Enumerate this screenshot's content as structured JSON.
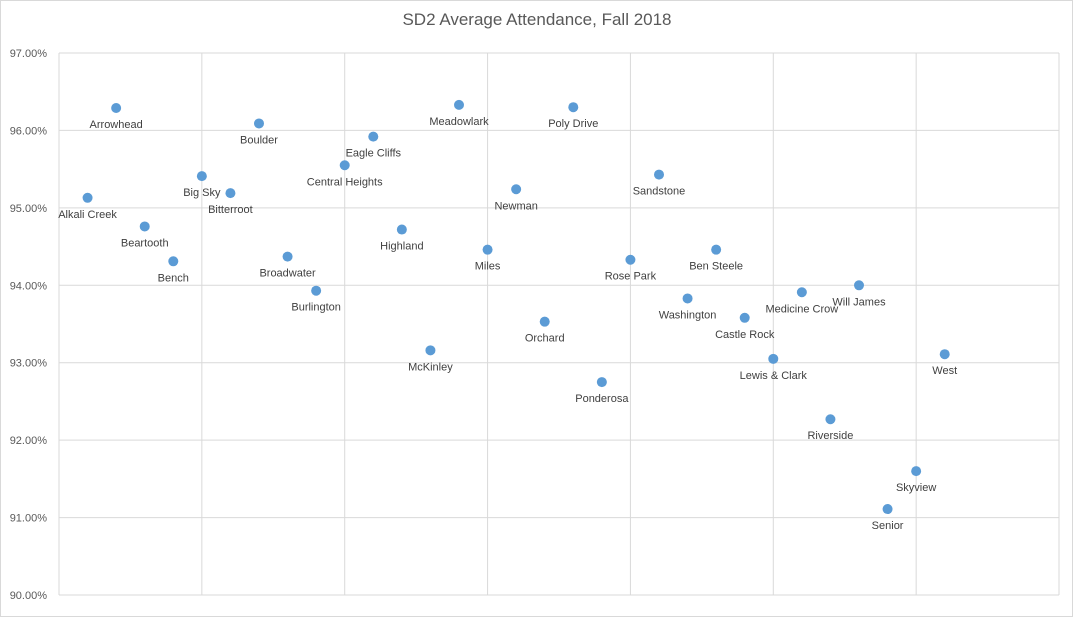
{
  "chart_data": {
    "type": "scatter",
    "title": "SD2 Average Attendance, Fall 2018",
    "xlabel": "",
    "ylabel": "",
    "ylim": [
      0.9,
      0.97
    ],
    "y_ticks": [
      "90.00%",
      "91.00%",
      "92.00%",
      "93.00%",
      "94.00%",
      "95.00%",
      "96.00%",
      "97.00%"
    ],
    "x_ticks_visible": false,
    "grid": true,
    "marker_color": "#5b9bd5",
    "points": [
      {
        "label": "Alkali Creek",
        "x": 1,
        "y": 0.9513
      },
      {
        "label": "Arrowhead",
        "x": 2,
        "y": 0.9629
      },
      {
        "label": "Beartooth",
        "x": 3,
        "y": 0.9476
      },
      {
        "label": "Bench",
        "x": 4,
        "y": 0.9431
      },
      {
        "label": "Big Sky",
        "x": 5,
        "y": 0.9541
      },
      {
        "label": "Bitterroot",
        "x": 6,
        "y": 0.9519
      },
      {
        "label": "Boulder",
        "x": 7,
        "y": 0.9609
      },
      {
        "label": "Broadwater",
        "x": 8,
        "y": 0.9437
      },
      {
        "label": "Burlington",
        "x": 9,
        "y": 0.9393
      },
      {
        "label": "Central Heights",
        "x": 10,
        "y": 0.9555
      },
      {
        "label": "Eagle Cliffs",
        "x": 11,
        "y": 0.9592
      },
      {
        "label": "Highland",
        "x": 12,
        "y": 0.9472
      },
      {
        "label": "McKinley",
        "x": 13,
        "y": 0.9316
      },
      {
        "label": "Meadowlark",
        "x": 14,
        "y": 0.9633
      },
      {
        "label": "Miles",
        "x": 15,
        "y": 0.9446
      },
      {
        "label": "Newman",
        "x": 16,
        "y": 0.9524
      },
      {
        "label": "Orchard",
        "x": 17,
        "y": 0.9353
      },
      {
        "label": "Poly Drive",
        "x": 18,
        "y": 0.963
      },
      {
        "label": "Ponderosa",
        "x": 19,
        "y": 0.9275
      },
      {
        "label": "Rose Park",
        "x": 20,
        "y": 0.9433
      },
      {
        "label": "Sandstone",
        "x": 21,
        "y": 0.9543
      },
      {
        "label": "Washington",
        "x": 22,
        "y": 0.9383
      },
      {
        "label": "Ben Steele",
        "x": 23,
        "y": 0.9446
      },
      {
        "label": "Castle Rock",
        "x": 24,
        "y": 0.9358
      },
      {
        "label": "Lewis & Clark",
        "x": 25,
        "y": 0.9305
      },
      {
        "label": "Medicine Crow",
        "x": 26,
        "y": 0.9391
      },
      {
        "label": "Riverside",
        "x": 27,
        "y": 0.9227
      },
      {
        "label": "Will James",
        "x": 28,
        "y": 0.94
      },
      {
        "label": "Senior",
        "x": 29,
        "y": 0.9111
      },
      {
        "label": "Skyview",
        "x": 30,
        "y": 0.916
      },
      {
        "label": "West",
        "x": 31,
        "y": 0.9311
      }
    ]
  }
}
